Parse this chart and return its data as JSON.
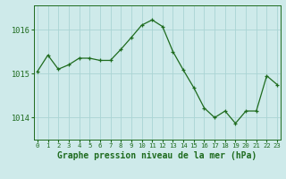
{
  "x": [
    0,
    1,
    2,
    3,
    4,
    5,
    6,
    7,
    8,
    9,
    10,
    11,
    12,
    13,
    14,
    15,
    16,
    17,
    18,
    19,
    20,
    21,
    22,
    23
  ],
  "y": [
    1015.05,
    1015.42,
    1015.1,
    1015.2,
    1015.35,
    1015.35,
    1015.3,
    1015.3,
    1015.55,
    1015.82,
    1016.1,
    1016.22,
    1016.07,
    1015.5,
    1015.08,
    1014.68,
    1014.22,
    1014.0,
    1014.15,
    1013.87,
    1014.15,
    1014.15,
    1014.95,
    1014.75
  ],
  "line_color": "#1e6b1e",
  "marker_color": "#1e6b1e",
  "bg_color": "#ceeaea",
  "grid_color": "#aad4d4",
  "axis_color": "#1e6b1e",
  "title": "Graphe pression niveau de la mer (hPa)",
  "ylabel_ticks": [
    1014,
    1015,
    1016
  ],
  "xlim": [
    -0.3,
    23.3
  ],
  "ylim": [
    1013.5,
    1016.55
  ]
}
